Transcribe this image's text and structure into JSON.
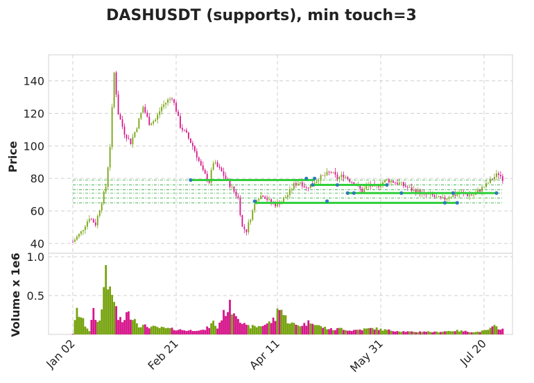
{
  "chart_data": {
    "type": "candlestick",
    "title": "DASHUSDT (supports), min touch=3",
    "panels": [
      {
        "name": "price",
        "ylabel": "Price",
        "ylim": [
          34,
          156
        ],
        "yticks": [
          40,
          60,
          80,
          100,
          120,
          140
        ]
      },
      {
        "name": "volume",
        "ylabel": "Volume x 1e6",
        "ylim": [
          0,
          1.0
        ],
        "yticks": [
          0.5,
          1.0
        ],
        "ytick_labels": [
          "0.5",
          "1.0"
        ]
      }
    ],
    "x_ticks": [
      "Jan 02",
      "Feb 21",
      "Apr 11",
      "May 31",
      "Jul 20"
    ],
    "date_range": [
      "Jan 02",
      "Jul 29"
    ],
    "grid": true,
    "colors": {
      "up": "#76a30f",
      "down": "#d6168b",
      "support": "#2fcf3a",
      "touch": "#2d7bb8",
      "level": "#2fa83a"
    },
    "support_levels": [
      65,
      68,
      71,
      73,
      76,
      79
    ],
    "support_lines": [
      {
        "start": "Feb 28",
        "end": "Apr 29",
        "price": 79
      },
      {
        "start": "Apr 28",
        "end": "Jun 03",
        "price": 76
      },
      {
        "start": "Mar 31",
        "end": "Jul 07",
        "price": 65
      },
      {
        "start": "May 15",
        "end": "Jul 26",
        "price": 71
      }
    ],
    "touch_points": [
      {
        "date": "Feb 28",
        "price": 79
      },
      {
        "date": "Apr 25",
        "price": 80
      },
      {
        "date": "Apr 29",
        "price": 80
      },
      {
        "date": "Apr 28",
        "price": 76
      },
      {
        "date": "May 10",
        "price": 76
      },
      {
        "date": "Jun 03",
        "price": 76
      },
      {
        "date": "Mar 31",
        "price": 66
      },
      {
        "date": "May 05",
        "price": 66
      },
      {
        "date": "Jul 01",
        "price": 65
      },
      {
        "date": "Jul 07",
        "price": 65
      },
      {
        "date": "May 15",
        "price": 71
      },
      {
        "date": "May 18",
        "price": 71
      },
      {
        "date": "Jun 10",
        "price": 71
      },
      {
        "date": "Jul 05",
        "price": 71
      },
      {
        "date": "Jul 26",
        "price": 71
      }
    ],
    "close_anchors": [
      [
        0,
        41
      ],
      [
        4,
        47
      ],
      [
        8,
        56
      ],
      [
        11,
        52
      ],
      [
        14,
        66
      ],
      [
        16,
        75
      ],
      [
        18,
        100
      ],
      [
        20,
        145
      ],
      [
        22,
        120
      ],
      [
        25,
        108
      ],
      [
        28,
        102
      ],
      [
        31,
        112
      ],
      [
        34,
        124
      ],
      [
        37,
        114
      ],
      [
        40,
        116
      ],
      [
        43,
        124
      ],
      [
        46,
        128
      ],
      [
        48,
        130
      ],
      [
        50,
        122
      ],
      [
        52,
        112
      ],
      [
        55,
        107
      ],
      [
        58,
        100
      ],
      [
        60,
        94
      ],
      [
        63,
        84
      ],
      [
        66,
        78
      ],
      [
        68,
        90
      ],
      [
        72,
        84
      ],
      [
        75,
        78
      ],
      [
        78,
        72
      ],
      [
        80,
        68
      ],
      [
        82,
        50
      ],
      [
        84,
        48
      ],
      [
        86,
        56
      ],
      [
        89,
        68
      ],
      [
        92,
        70
      ],
      [
        95,
        66
      ],
      [
        98,
        64
      ],
      [
        101,
        66
      ],
      [
        104,
        70
      ],
      [
        107,
        76
      ],
      [
        110,
        78
      ],
      [
        113,
        74
      ],
      [
        116,
        77
      ],
      [
        119,
        80
      ],
      [
        122,
        82
      ],
      [
        125,
        84
      ],
      [
        128,
        80
      ],
      [
        131,
        82
      ],
      [
        134,
        79
      ],
      [
        137,
        76
      ],
      [
        140,
        72
      ],
      [
        143,
        76
      ],
      [
        146,
        74
      ],
      [
        149,
        77
      ],
      [
        152,
        79
      ],
      [
        155,
        78
      ],
      [
        158,
        77
      ],
      [
        161,
        75
      ],
      [
        164,
        73
      ],
      [
        167,
        72
      ],
      [
        170,
        70
      ],
      [
        173,
        70
      ],
      [
        176,
        68
      ],
      [
        179,
        67
      ],
      [
        182,
        69
      ],
      [
        185,
        70
      ],
      [
        188,
        71
      ],
      [
        191,
        70
      ],
      [
        194,
        70
      ],
      [
        197,
        73
      ],
      [
        200,
        76
      ],
      [
        203,
        80
      ],
      [
        206,
        83
      ],
      [
        208,
        80
      ]
    ],
    "volume_anchors": [
      [
        0,
        0.01
      ],
      [
        2,
        0.3
      ],
      [
        4,
        0.22
      ],
      [
        6,
        0.12
      ],
      [
        8,
        0.05
      ],
      [
        10,
        0.28
      ],
      [
        12,
        0.15
      ],
      [
        14,
        0.3
      ],
      [
        16,
        0.92
      ],
      [
        18,
        0.5
      ],
      [
        20,
        0.45
      ],
      [
        22,
        0.2
      ],
      [
        24,
        0.16
      ],
      [
        26,
        0.26
      ],
      [
        28,
        0.25
      ],
      [
        30,
        0.2
      ],
      [
        32,
        0.12
      ],
      [
        34,
        0.11
      ],
      [
        37,
        0.1
      ],
      [
        40,
        0.09
      ],
      [
        44,
        0.08
      ],
      [
        48,
        0.07
      ],
      [
        52,
        0.06
      ],
      [
        56,
        0.05
      ],
      [
        60,
        0.06
      ],
      [
        63,
        0.05
      ],
      [
        66,
        0.1
      ],
      [
        68,
        0.16
      ],
      [
        70,
        0.08
      ],
      [
        72,
        0.22
      ],
      [
        74,
        0.3
      ],
      [
        76,
        0.36
      ],
      [
        78,
        0.3
      ],
      [
        80,
        0.25
      ],
      [
        82,
        0.15
      ],
      [
        84,
        0.1
      ],
      [
        86,
        0.1
      ],
      [
        89,
        0.1
      ],
      [
        92,
        0.12
      ],
      [
        95,
        0.15
      ],
      [
        98,
        0.2
      ],
      [
        100,
        0.4
      ],
      [
        102,
        0.25
      ],
      [
        104,
        0.18
      ],
      [
        106,
        0.14
      ],
      [
        108,
        0.12
      ],
      [
        110,
        0.12
      ],
      [
        113,
        0.14
      ],
      [
        116,
        0.18
      ],
      [
        118,
        0.12
      ],
      [
        120,
        0.1
      ],
      [
        123,
        0.08
      ],
      [
        126,
        0.06
      ],
      [
        130,
        0.08
      ],
      [
        134,
        0.05
      ],
      [
        138,
        0.06
      ],
      [
        142,
        0.07
      ],
      [
        146,
        0.08
      ],
      [
        150,
        0.06
      ],
      [
        155,
        0.05
      ],
      [
        160,
        0.04
      ],
      [
        165,
        0.03
      ],
      [
        170,
        0.04
      ],
      [
        175,
        0.03
      ],
      [
        180,
        0.04
      ],
      [
        185,
        0.05
      ],
      [
        190,
        0.04
      ],
      [
        195,
        0.03
      ],
      [
        200,
        0.05
      ],
      [
        204,
        0.1
      ],
      [
        208,
        0.07
      ]
    ]
  }
}
